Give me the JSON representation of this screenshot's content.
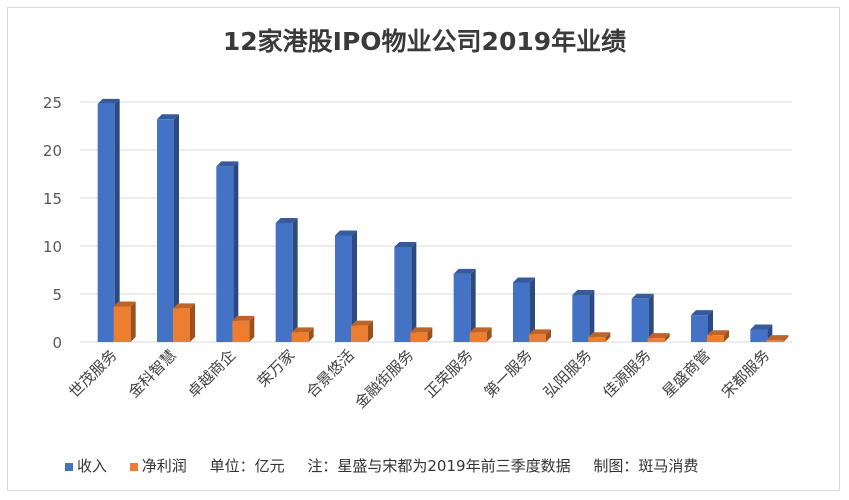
{
  "chart_data": {
    "type": "bar",
    "title": "12家港股IPO物业公司2019年业绩",
    "categories": [
      "世茂服务",
      "金科智慧",
      "卓越商企",
      "荣万家",
      "合景悠活",
      "金融街服务",
      "正荣服务",
      "第一服务",
      "弘阳服务",
      "佳源服务",
      "星盛商管",
      "宋都服务"
    ],
    "series": [
      {
        "name": "收入",
        "color": "#4472c4",
        "values": [
          24.8,
          23.2,
          18.3,
          12.4,
          11.1,
          9.9,
          7.1,
          6.2,
          4.9,
          4.5,
          2.8,
          1.3
        ]
      },
      {
        "name": "净利润",
        "color": "#ed7d31",
        "values": [
          3.7,
          3.5,
          2.2,
          1.0,
          1.7,
          1.0,
          1.0,
          0.8,
          0.5,
          0.4,
          0.7,
          0.2
        ]
      }
    ],
    "ylim": [
      0,
      25
    ],
    "yticks": [
      "0",
      "5",
      "10",
      "15",
      "20",
      "25"
    ],
    "grid": true,
    "legend_position": "bottom-left",
    "note_unit": "单位：亿元",
    "note_remark": "注：星盛与宋都为2019年前三季度数据",
    "note_credit": "制图：斑马消费"
  }
}
